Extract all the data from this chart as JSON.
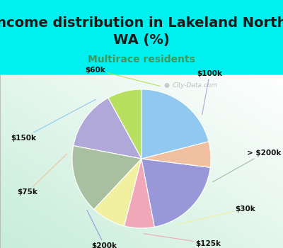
{
  "title": "Income distribution in Lakeland North,\nWA (%)",
  "subtitle": "Multirace residents",
  "labels": [
    "$60k",
    "$100k",
    "> $200k",
    "$30k",
    "$125k",
    "$200k",
    "$75k",
    "$150k"
  ],
  "sizes": [
    8,
    14,
    16,
    8,
    7,
    20,
    6,
    21
  ],
  "colors": [
    "#b8e060",
    "#b0a8d8",
    "#a8bfa0",
    "#f0f0a0",
    "#f0a8b8",
    "#9898d8",
    "#f0c0a0",
    "#90c8f0"
  ],
  "startangle": 90,
  "bg_top_color": "#00efef",
  "title_fontsize": 14,
  "subtitle_color": "#3a9a60",
  "subtitle_fontsize": 10,
  "watermark": "City-Data.com"
}
